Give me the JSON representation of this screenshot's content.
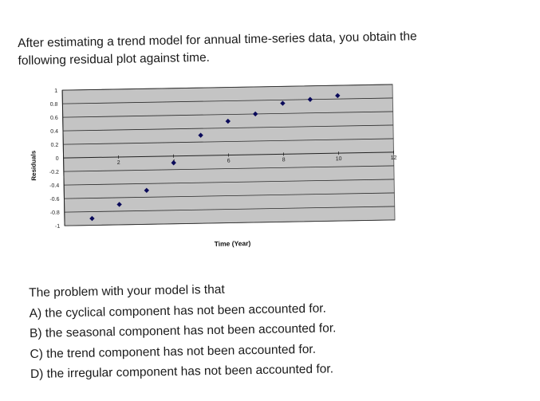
{
  "question": {
    "line1": "After estimating a trend model for annual time-series data, you obtain the",
    "line2": "following residual plot against time."
  },
  "chart_data": {
    "type": "scatter",
    "xlabel": "Time (Year)",
    "ylabel": "Residuals",
    "xlim": [
      0,
      12
    ],
    "ylim": [
      -1,
      1
    ],
    "x_ticks": [
      "2",
      "4",
      "6",
      "8",
      "10",
      "12"
    ],
    "y_ticks": [
      "1",
      "0.8",
      "0.6",
      "0.4",
      "0.2",
      "0",
      "-0.2",
      "-0.4",
      "-0.6",
      "-0.8",
      "-1"
    ],
    "grid": true,
    "colors": {
      "plot_bg": "#c4c4c4",
      "marker": "#0a0a5a",
      "grid": "#2a2a2a"
    },
    "points": [
      {
        "x": 1,
        "y": -0.9
      },
      {
        "x": 2,
        "y": -0.7
      },
      {
        "x": 3,
        "y": -0.5
      },
      {
        "x": 4,
        "y": -0.1
      },
      {
        "x": 5,
        "y": 0.3
      },
      {
        "x": 6,
        "y": 0.5
      },
      {
        "x": 7,
        "y": 0.6
      },
      {
        "x": 8,
        "y": 0.75
      },
      {
        "x": 9,
        "y": 0.8
      },
      {
        "x": 10,
        "y": 0.85
      }
    ]
  },
  "prompt": "The problem with your model is that",
  "options": [
    {
      "label": "A) the cyclical component has not been accounted for."
    },
    {
      "label": "B) the seasonal component has not been accounted for."
    },
    {
      "label": "C) the trend component has not been accounted for."
    },
    {
      "label": "D) the irregular component has not been accounted for."
    }
  ]
}
